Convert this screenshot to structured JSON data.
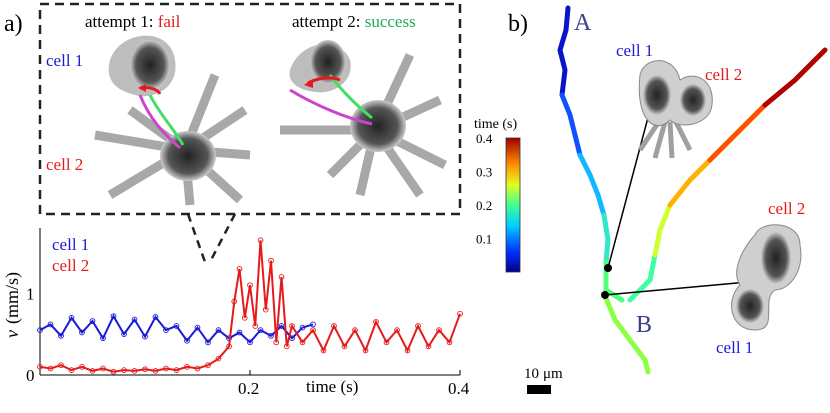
{
  "panel_a": {
    "label": "a)",
    "inset": {
      "attempt1_prefix": "attempt 1: ",
      "attempt1_result": "fail",
      "attempt2_prefix": "attempt 2: ",
      "attempt2_result": "success",
      "cell1_label": "cell 1",
      "cell2_label": "cell 2"
    }
  },
  "panel_b": {
    "label": "b)",
    "point_a": "A",
    "point_b": "B",
    "upper_inset": {
      "cell1": "cell 1",
      "cell2": "cell 2"
    },
    "lower_inset": {
      "cell1": "cell 1",
      "cell2": "cell 2"
    },
    "scalebar_value": "10",
    "scalebar_unit": "μm"
  },
  "colors": {
    "cell1": "#1a1ad6",
    "cell2": "#e51b1b",
    "success": "#22aa55",
    "trajectory_label": "#3a3f8f"
  },
  "chart_data": [
    {
      "type": "line",
      "x_label_symbol": "v",
      "y_label_unit": "(mm/s)",
      "xlabel": "time (s)",
      "xlim": [
        0.0,
        0.4
      ],
      "ylim": [
        0,
        1.8
      ],
      "x_ticks": [
        "0.2",
        "0.4"
      ],
      "y_ticks": [
        "0",
        "1"
      ],
      "legend": [
        "cell 1",
        "cell 2"
      ],
      "legend_placement": "top-left",
      "series": [
        {
          "name": "cell 1",
          "color": "#1a1ad6",
          "x": [
            0.0,
            0.01,
            0.02,
            0.03,
            0.04,
            0.05,
            0.06,
            0.07,
            0.08,
            0.09,
            0.1,
            0.11,
            0.12,
            0.13,
            0.14,
            0.15,
            0.16,
            0.17,
            0.18,
            0.19,
            0.2,
            0.21,
            0.22,
            0.23,
            0.24,
            0.25,
            0.26
          ],
          "values": [
            0.55,
            0.62,
            0.48,
            0.7,
            0.52,
            0.66,
            0.45,
            0.72,
            0.5,
            0.68,
            0.47,
            0.71,
            0.55,
            0.6,
            0.42,
            0.58,
            0.4,
            0.55,
            0.45,
            0.52,
            0.4,
            0.55,
            0.48,
            0.6,
            0.45,
            0.58,
            0.62
          ]
        },
        {
          "name": "cell 2",
          "color": "#e51b1b",
          "x": [
            0.0,
            0.01,
            0.02,
            0.03,
            0.04,
            0.05,
            0.06,
            0.07,
            0.08,
            0.09,
            0.1,
            0.11,
            0.12,
            0.13,
            0.14,
            0.15,
            0.16,
            0.17,
            0.18,
            0.185,
            0.19,
            0.195,
            0.2,
            0.205,
            0.21,
            0.215,
            0.22,
            0.225,
            0.23,
            0.235,
            0.24,
            0.25,
            0.26,
            0.27,
            0.28,
            0.29,
            0.3,
            0.31,
            0.32,
            0.33,
            0.34,
            0.35,
            0.36,
            0.37,
            0.38,
            0.39,
            0.4
          ],
          "values": [
            0.1,
            0.08,
            0.12,
            0.06,
            0.1,
            0.05,
            0.08,
            0.04,
            0.06,
            0.05,
            0.07,
            0.05,
            0.08,
            0.06,
            0.1,
            0.08,
            0.12,
            0.2,
            0.35,
            0.9,
            1.3,
            0.7,
            1.1,
            0.6,
            1.65,
            0.8,
            1.4,
            0.4,
            1.2,
            0.35,
            0.6,
            0.4,
            0.55,
            0.3,
            0.6,
            0.35,
            0.55,
            0.3,
            0.65,
            0.4,
            0.55,
            0.3,
            0.6,
            0.35,
            0.55,
            0.4,
            0.75
          ]
        }
      ]
    },
    {
      "type": "colorbar",
      "title": "time (s)",
      "range": [
        0.0,
        0.4
      ],
      "ticks": [
        "0.1",
        "0.2",
        "0.3",
        "0.4"
      ],
      "colormap": "jet"
    }
  ]
}
